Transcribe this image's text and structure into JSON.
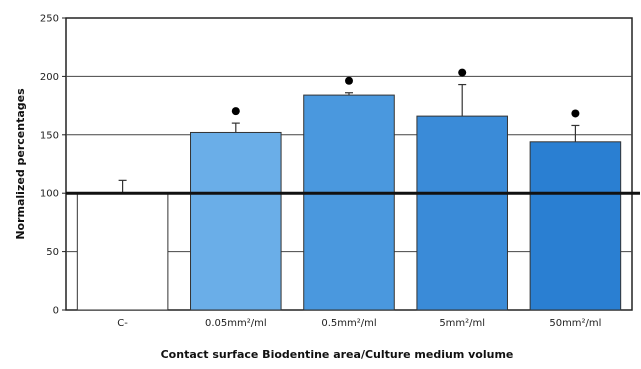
{
  "chart_data": {
    "type": "bar",
    "title": "",
    "xlabel": "Contact surface Biodentine area/Culture medium volume",
    "ylabel": "Normalized percentages",
    "categories": [
      "C-",
      "0.05mm²/ml",
      "0.5mm²/ml",
      "5mm²/ml",
      "50mm²/ml"
    ],
    "values": [
      100,
      152,
      184,
      166,
      144
    ],
    "error_bars": [
      11,
      8,
      2,
      27,
      14
    ],
    "significance_markers": [
      false,
      true,
      true,
      true,
      true
    ],
    "significance_symbol": "●",
    "reference_line": 100,
    "ylim": [
      0,
      250
    ],
    "yticks": [
      0,
      50,
      100,
      150,
      200,
      250
    ],
    "grid": true,
    "colors": [
      "#ffffff",
      "#6aaee8",
      "#4a98de",
      "#3a8bd8",
      "#2a7fd2"
    ],
    "bar_edge_color": "#333333",
    "grid_color": "#444444"
  }
}
